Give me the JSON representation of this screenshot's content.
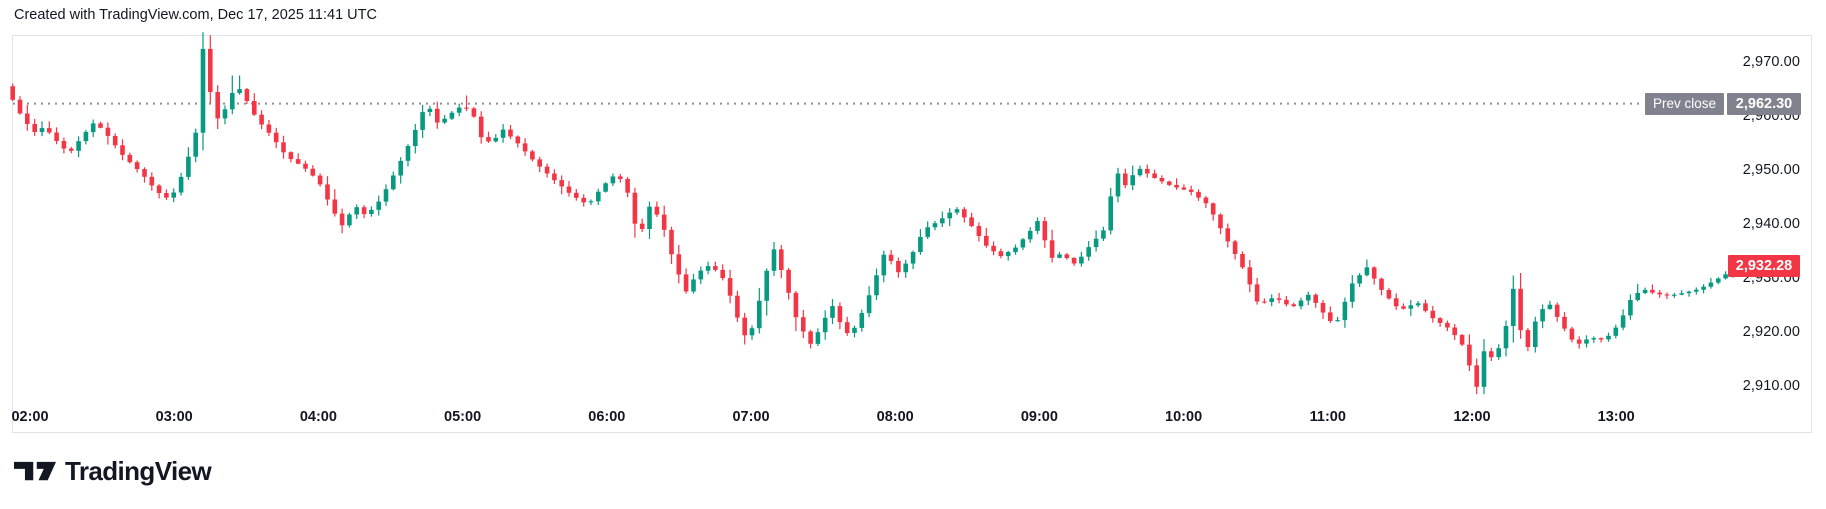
{
  "header": {
    "title": "Created with TradingView.com, Dec 17, 2025 11:41 UTC"
  },
  "footer": {
    "brand": "TradingView"
  },
  "chart_data": {
    "type": "candlestick",
    "title": "",
    "xlabel": "",
    "ylabel": "",
    "grid": false,
    "legend_position": "none",
    "x_ticks": [
      {
        "label": "02:00",
        "hour": 2
      },
      {
        "label": "03:00",
        "hour": 3
      },
      {
        "label": "04:00",
        "hour": 4
      },
      {
        "label": "05:00",
        "hour": 5
      },
      {
        "label": "06:00",
        "hour": 6
      },
      {
        "label": "07:00",
        "hour": 7
      },
      {
        "label": "08:00",
        "hour": 8
      },
      {
        "label": "09:00",
        "hour": 9
      },
      {
        "label": "10:00",
        "hour": 10
      },
      {
        "label": "11:00",
        "hour": 11
      },
      {
        "label": "12:00",
        "hour": 12
      },
      {
        "label": "13:00",
        "hour": 13
      }
    ],
    "y_ticks": [
      {
        "label": "2,970.00",
        "value": 2970
      },
      {
        "label": "2,960.00",
        "value": 2960
      },
      {
        "label": "2,950.00",
        "value": 2950
      },
      {
        "label": "2,940.00",
        "value": 2940
      },
      {
        "label": "2,930.00",
        "value": 2930
      },
      {
        "label": "2,920.00",
        "value": 2920
      },
      {
        "label": "2,910.00",
        "value": 2910
      }
    ],
    "y_range_visible": [
      2906,
      2976.5
    ],
    "prev_close": {
      "label": "Prev close",
      "value": 2962.3,
      "display": "2,962.30"
    },
    "last_price": {
      "value": 2932.28,
      "display": "2,932.28",
      "direction": "down"
    },
    "session_high": 2975.5,
    "session_low": 2908.7,
    "time_start_hours": 1.88,
    "time_end_hours": 13.85,
    "candle_interval_minutes": 3,
    "first_open": 2965.5,
    "price_path_keypoints": [
      [
        1.88,
        2963
      ],
      [
        1.95,
        2959.5
      ],
      [
        2.03,
        2957
      ],
      [
        2.1,
        2958
      ],
      [
        2.18,
        2955.5
      ],
      [
        2.27,
        2953
      ],
      [
        2.37,
        2956.5
      ],
      [
        2.45,
        2959
      ],
      [
        2.55,
        2956
      ],
      [
        2.65,
        2952.5
      ],
      [
        2.77,
        2949.5
      ],
      [
        2.88,
        2946
      ],
      [
        2.97,
        2944.5
      ],
      [
        3.03,
        2947.5
      ],
      [
        3.08,
        2951
      ],
      [
        3.13,
        2955
      ],
      [
        3.17,
        2959
      ],
      [
        3.2,
        2972.5
      ],
      [
        3.24,
        2965.5
      ],
      [
        3.3,
        2959.5
      ],
      [
        3.36,
        2961.5
      ],
      [
        3.43,
        2966
      ],
      [
        3.5,
        2963
      ],
      [
        3.57,
        2959.5
      ],
      [
        3.67,
        2956.5
      ],
      [
        3.78,
        2952.5
      ],
      [
        3.9,
        2950.5
      ],
      [
        4.0,
        2948
      ],
      [
        4.1,
        2942.5
      ],
      [
        4.17,
        2939.5
      ],
      [
        4.25,
        2943.5
      ],
      [
        4.33,
        2941.5
      ],
      [
        4.43,
        2944.5
      ],
      [
        4.53,
        2949.5
      ],
      [
        4.65,
        2956
      ],
      [
        4.75,
        2962.5
      ],
      [
        4.83,
        2958.5
      ],
      [
        4.92,
        2960.5
      ],
      [
        5.0,
        2962
      ],
      [
        5.07,
        2960.5
      ],
      [
        5.13,
        2956
      ],
      [
        5.2,
        2955
      ],
      [
        5.28,
        2957.5
      ],
      [
        5.38,
        2955
      ],
      [
        5.5,
        2951.5
      ],
      [
        5.62,
        2948.5
      ],
      [
        5.75,
        2945.5
      ],
      [
        5.87,
        2943.5
      ],
      [
        5.97,
        2947
      ],
      [
        6.07,
        2949.5
      ],
      [
        6.15,
        2945.5
      ],
      [
        6.22,
        2937
      ],
      [
        6.3,
        2943.5
      ],
      [
        6.38,
        2940.5
      ],
      [
        6.47,
        2932.5
      ],
      [
        6.55,
        2927.5
      ],
      [
        6.63,
        2931
      ],
      [
        6.72,
        2932.5
      ],
      [
        6.82,
        2929.5
      ],
      [
        6.92,
        2921.5
      ],
      [
        6.98,
        2918
      ],
      [
        7.07,
        2927
      ],
      [
        7.15,
        2936
      ],
      [
        7.23,
        2930
      ],
      [
        7.32,
        2922
      ],
      [
        7.42,
        2917.5
      ],
      [
        7.5,
        2922
      ],
      [
        7.57,
        2925
      ],
      [
        7.65,
        2919.5
      ],
      [
        7.73,
        2921
      ],
      [
        7.83,
        2927.5
      ],
      [
        7.93,
        2935
      ],
      [
        8.02,
        2931
      ],
      [
        8.1,
        2933.5
      ],
      [
        8.2,
        2939
      ],
      [
        8.3,
        2940.5
      ],
      [
        8.42,
        2943
      ],
      [
        8.52,
        2940
      ],
      [
        8.63,
        2936
      ],
      [
        8.73,
        2934
      ],
      [
        8.83,
        2935.5
      ],
      [
        8.93,
        2938.5
      ],
      [
        9.0,
        2941
      ],
      [
        9.07,
        2933.5
      ],
      [
        9.15,
        2934.5
      ],
      [
        9.25,
        2932.5
      ],
      [
        9.35,
        2936
      ],
      [
        9.45,
        2939
      ],
      [
        9.53,
        2950
      ],
      [
        9.6,
        2947
      ],
      [
        9.68,
        2950.5
      ],
      [
        9.8,
        2948.5
      ],
      [
        9.92,
        2947
      ],
      [
        10.05,
        2946
      ],
      [
        10.17,
        2943.5
      ],
      [
        10.28,
        2938
      ],
      [
        10.4,
        2932.5
      ],
      [
        10.52,
        2925
      ],
      [
        10.63,
        2926.5
      ],
      [
        10.75,
        2924.5
      ],
      [
        10.87,
        2927
      ],
      [
        10.97,
        2923.5
      ],
      [
        11.05,
        2921
      ],
      [
        11.17,
        2929
      ],
      [
        11.27,
        2932
      ],
      [
        11.38,
        2927.5
      ],
      [
        11.5,
        2924
      ],
      [
        11.62,
        2925.5
      ],
      [
        11.73,
        2922.5
      ],
      [
        11.85,
        2920.5
      ],
      [
        11.95,
        2917
      ],
      [
        12.0,
        2912
      ],
      [
        12.03,
        2909.5
      ],
      [
        12.08,
        2916.5
      ],
      [
        12.15,
        2915
      ],
      [
        12.22,
        2919
      ],
      [
        12.29,
        2928.5
      ],
      [
        12.33,
        2921
      ],
      [
        12.38,
        2916.5
      ],
      [
        12.45,
        2923
      ],
      [
        12.53,
        2925.5
      ],
      [
        12.62,
        2921.5
      ],
      [
        12.72,
        2917.5
      ],
      [
        12.82,
        2919
      ],
      [
        12.92,
        2918.5
      ],
      [
        13.02,
        2921.5
      ],
      [
        13.1,
        2926
      ],
      [
        13.18,
        2928
      ],
      [
        13.28,
        2927
      ],
      [
        13.38,
        2926.8
      ],
      [
        13.48,
        2927.3
      ],
      [
        13.58,
        2928
      ],
      [
        13.68,
        2929.5
      ],
      [
        13.78,
        2931
      ],
      [
        13.85,
        2932.28
      ]
    ],
    "wick_overrides": [
      {
        "t": 1.88,
        "high": 2966
      },
      {
        "t": 3.2,
        "high": 2975.5
      },
      {
        "t": 3.43,
        "high": 2967.5
      },
      {
        "t": 4.17,
        "low": 2938.3
      },
      {
        "t": 5.02,
        "high": 2963.8
      },
      {
        "t": 12.03,
        "low": 2908.7
      },
      {
        "t": 13.85,
        "high": 2934.2
      }
    ],
    "colors": {
      "up": "#089981",
      "down": "#F23645",
      "prev_close_badge": "#80838D",
      "last_price_badge": "#F23645",
      "dotted_line": "#8C8F98",
      "axis_text": "#131722",
      "frame_border": "#E0E3EB"
    }
  }
}
